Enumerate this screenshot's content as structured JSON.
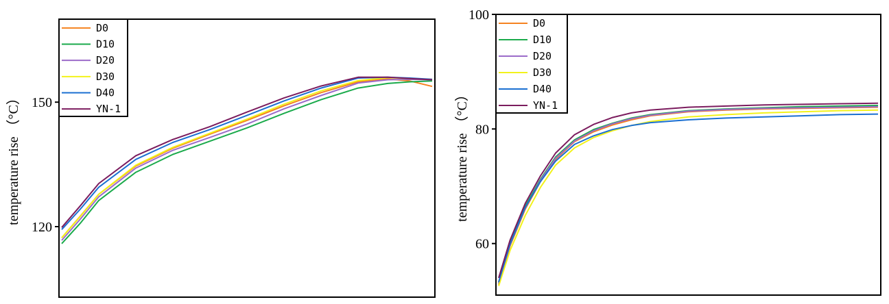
{
  "chart_data": [
    {
      "type": "line",
      "ylabel": "temperature rise （°C）",
      "ylim": [
        103,
        170
      ],
      "xlim": [
        0,
        1
      ],
      "yticks": [
        120,
        150
      ],
      "grid": false,
      "legend_position": "top-left",
      "series": [
        {
          "name": "D0",
          "color": "#f5821f",
          "x": [
            0,
            0.05,
            0.1,
            0.2,
            0.3,
            0.4,
            0.5,
            0.6,
            0.7,
            0.8,
            0.88,
            0.94,
            1.0
          ],
          "y": [
            117.3,
            122.5,
            127.8,
            134.6,
            138.9,
            142.3,
            145.6,
            149.1,
            152.3,
            154.9,
            155.6,
            155.1,
            153.8
          ]
        },
        {
          "name": "D10",
          "color": "#1aaa4b",
          "x": [
            0,
            0.05,
            0.1,
            0.2,
            0.3,
            0.4,
            0.5,
            0.6,
            0.7,
            0.8,
            0.88,
            0.94,
            1.0
          ],
          "y": [
            115.9,
            120.8,
            126.3,
            133.1,
            137.4,
            140.6,
            143.8,
            147.3,
            150.6,
            153.4,
            154.5,
            154.9,
            155.1
          ]
        },
        {
          "name": "D20",
          "color": "#9b6bc9",
          "x": [
            0,
            0.05,
            0.1,
            0.2,
            0.3,
            0.4,
            0.5,
            0.6,
            0.7,
            0.8,
            0.88,
            0.94,
            1.0
          ],
          "y": [
            116.7,
            121.8,
            127.2,
            134.1,
            138.4,
            141.5,
            144.7,
            148.4,
            151.6,
            154.6,
            155.4,
            155.5,
            155.4
          ]
        },
        {
          "name": "D30",
          "color": "#f2f21a",
          "x": [
            0,
            0.05,
            0.1,
            0.2,
            0.3,
            0.4,
            0.5,
            0.6,
            0.7,
            0.8,
            0.88,
            0.94,
            1.0
          ],
          "y": [
            117.3,
            122.4,
            127.8,
            134.8,
            139.1,
            142.5,
            145.9,
            149.5,
            152.7,
            155.2,
            155.9,
            155.7,
            155.5
          ]
        },
        {
          "name": "D40",
          "color": "#1a6fd1",
          "x": [
            0,
            0.05,
            0.1,
            0.2,
            0.3,
            0.4,
            0.5,
            0.6,
            0.7,
            0.8,
            0.88,
            0.94,
            1.0
          ],
          "y": [
            119.3,
            124.2,
            129.5,
            136.2,
            140.3,
            143.4,
            146.8,
            150.3,
            153.4,
            155.8,
            156.0,
            155.8,
            155.5
          ]
        },
        {
          "name": "YN-1",
          "color": "#7b1c5e",
          "x": [
            0,
            0.05,
            0.1,
            0.2,
            0.3,
            0.4,
            0.5,
            0.6,
            0.7,
            0.8,
            0.88,
            0.94,
            1.0
          ],
          "y": [
            119.8,
            125.0,
            130.4,
            137.1,
            141.0,
            144.1,
            147.6,
            151.0,
            153.9,
            156.0,
            156.0,
            155.7,
            155.4
          ]
        }
      ]
    },
    {
      "type": "line",
      "ylabel": "temperature rise （°C）",
      "ylim": [
        51,
        100
      ],
      "xlim": [
        0,
        1
      ],
      "yticks": [
        60,
        80,
        100
      ],
      "grid": false,
      "legend_position": "top-left",
      "series": [
        {
          "name": "D0",
          "color": "#f5821f",
          "x": [
            0,
            0.03,
            0.07,
            0.11,
            0.15,
            0.2,
            0.25,
            0.3,
            0.35,
            0.4,
            0.5,
            0.6,
            0.7,
            0.8,
            0.9,
            1.0
          ],
          "y": [
            52.8,
            59.6,
            66.0,
            70.8,
            74.7,
            77.8,
            79.5,
            80.7,
            81.6,
            82.3,
            83.0,
            83.3,
            83.5,
            83.6,
            83.7,
            83.8
          ]
        },
        {
          "name": "D10",
          "color": "#1aaa4b",
          "x": [
            0,
            0.03,
            0.07,
            0.11,
            0.15,
            0.2,
            0.25,
            0.3,
            0.35,
            0.4,
            0.5,
            0.6,
            0.7,
            0.8,
            0.9,
            1.0
          ],
          "y": [
            53.2,
            60.0,
            66.5,
            71.2,
            75.1,
            78.1,
            79.9,
            81.0,
            81.9,
            82.5,
            83.2,
            83.5,
            83.7,
            83.9,
            84.0,
            84.1
          ]
        },
        {
          "name": "D20",
          "color": "#9b6bc9",
          "x": [
            0,
            0.03,
            0.07,
            0.11,
            0.15,
            0.2,
            0.25,
            0.3,
            0.35,
            0.4,
            0.5,
            0.6,
            0.7,
            0.8,
            0.9,
            1.0
          ],
          "y": [
            53.0,
            59.8,
            66.2,
            71.0,
            74.9,
            77.9,
            79.7,
            80.9,
            81.8,
            82.4,
            83.1,
            83.4,
            83.6,
            83.7,
            83.8,
            83.9
          ]
        },
        {
          "name": "D30",
          "color": "#f2f21a",
          "x": [
            0,
            0.03,
            0.07,
            0.11,
            0.15,
            0.2,
            0.25,
            0.3,
            0.35,
            0.4,
            0.5,
            0.6,
            0.7,
            0.8,
            0.9,
            1.0
          ],
          "y": [
            52.6,
            58.8,
            64.9,
            69.8,
            73.7,
            76.7,
            78.5,
            79.7,
            80.6,
            81.3,
            82.1,
            82.5,
            82.8,
            83.0,
            83.2,
            83.3
          ]
        },
        {
          "name": "D40",
          "color": "#1a6fd1",
          "x": [
            0,
            0.03,
            0.07,
            0.11,
            0.15,
            0.2,
            0.25,
            0.3,
            0.35,
            0.4,
            0.5,
            0.6,
            0.7,
            0.8,
            0.9,
            1.0
          ],
          "y": [
            53.3,
            59.9,
            66.3,
            70.8,
            74.4,
            77.3,
            78.8,
            79.9,
            80.6,
            81.1,
            81.6,
            81.9,
            82.1,
            82.3,
            82.5,
            82.6
          ]
        },
        {
          "name": "YN-1",
          "color": "#7b1c5e",
          "x": [
            0,
            0.03,
            0.07,
            0.11,
            0.15,
            0.2,
            0.25,
            0.3,
            0.35,
            0.4,
            0.5,
            0.6,
            0.7,
            0.8,
            0.9,
            1.0
          ],
          "y": [
            54.0,
            60.6,
            67.0,
            71.8,
            75.8,
            79.0,
            80.8,
            82.0,
            82.8,
            83.3,
            83.8,
            84.0,
            84.2,
            84.3,
            84.4,
            84.5
          ]
        }
      ]
    }
  ]
}
